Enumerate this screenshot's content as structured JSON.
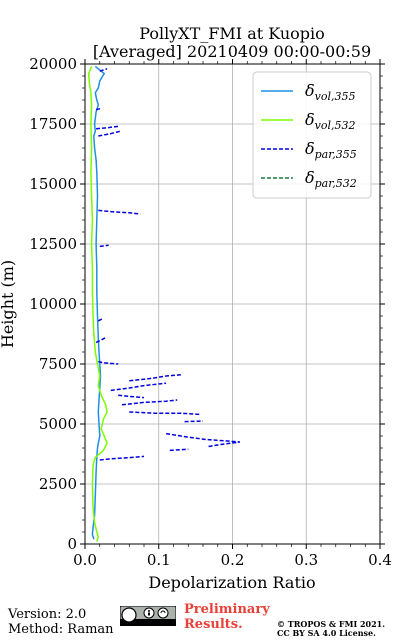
{
  "chart_data": {
    "type": "line",
    "title": [
      "PollyXT_FMI at Kuopio",
      "[Averaged] 20210409 00:00-00:59"
    ],
    "xlabel": "Depolarization Ratio",
    "ylabel": "Height (m)",
    "xlim": [
      0.0,
      0.4
    ],
    "ylim": [
      0,
      20000
    ],
    "xticks": [
      0.0,
      0.1,
      0.2,
      0.3,
      0.4
    ],
    "xtick_labels": [
      "0.0",
      "0.1",
      "0.2",
      "0.3",
      "0.4"
    ],
    "yticks": [
      0,
      2500,
      5000,
      7500,
      10000,
      12500,
      15000,
      17500,
      20000
    ],
    "ytick_labels": [
      "0",
      "2500",
      "5000",
      "7500",
      "10000",
      "12500",
      "15000",
      "17500",
      "20000"
    ],
    "grid": true,
    "legend_position": "top-right",
    "series": [
      {
        "name": "δvol,355",
        "legend_base": "δ",
        "legend_sub": "vol,355",
        "color": "#1f8fe6",
        "style": "solid",
        "points": [
          [
            0.012,
            200
          ],
          [
            0.01,
            400
          ],
          [
            0.011,
            700
          ],
          [
            0.013,
            1200
          ],
          [
            0.014,
            2000
          ],
          [
            0.015,
            3000
          ],
          [
            0.016,
            3600
          ],
          [
            0.017,
            4000
          ],
          [
            0.018,
            4200
          ],
          [
            0.02,
            4500
          ],
          [
            0.019,
            5000
          ],
          [
            0.018,
            5500
          ],
          [
            0.019,
            6000
          ],
          [
            0.02,
            6500
          ],
          [
            0.021,
            7000
          ],
          [
            0.02,
            7500
          ],
          [
            0.019,
            8000
          ],
          [
            0.018,
            8600
          ],
          [
            0.017,
            9500
          ],
          [
            0.016,
            10500
          ],
          [
            0.016,
            11500
          ],
          [
            0.015,
            12500
          ],
          [
            0.016,
            13500
          ],
          [
            0.017,
            14500
          ],
          [
            0.016,
            15500
          ],
          [
            0.015,
            16000
          ],
          [
            0.013,
            16500
          ],
          [
            0.012,
            17000
          ],
          [
            0.014,
            17200
          ],
          [
            0.013,
            17500
          ],
          [
            0.015,
            18000
          ],
          [
            0.018,
            18300
          ],
          [
            0.016,
            18500
          ],
          [
            0.014,
            18800
          ],
          [
            0.018,
            19000
          ],
          [
            0.02,
            19300
          ],
          [
            0.026,
            19600
          ],
          [
            0.014,
            19900
          ]
        ]
      },
      {
        "name": "δvol,532",
        "legend_base": "δ",
        "legend_sub": "vol,532",
        "color": "#7cfc00",
        "style": "solid",
        "points": [
          [
            0.016,
            100
          ],
          [
            0.018,
            300
          ],
          [
            0.016,
            500
          ],
          [
            0.013,
            900
          ],
          [
            0.011,
            1500
          ],
          [
            0.01,
            2500
          ],
          [
            0.011,
            3300
          ],
          [
            0.014,
            3600
          ],
          [
            0.025,
            3900
          ],
          [
            0.03,
            4200
          ],
          [
            0.026,
            4500
          ],
          [
            0.022,
            4800
          ],
          [
            0.025,
            5200
          ],
          [
            0.03,
            5500
          ],
          [
            0.028,
            5800
          ],
          [
            0.022,
            6200
          ],
          [
            0.018,
            6600
          ],
          [
            0.02,
            7000
          ],
          [
            0.017,
            7500
          ],
          [
            0.014,
            8000
          ],
          [
            0.012,
            8800
          ],
          [
            0.011,
            9500
          ],
          [
            0.01,
            10500
          ],
          [
            0.01,
            11500
          ],
          [
            0.009,
            12500
          ],
          [
            0.01,
            13500
          ],
          [
            0.009,
            14500
          ],
          [
            0.008,
            15500
          ],
          [
            0.009,
            16500
          ],
          [
            0.008,
            17500
          ],
          [
            0.009,
            18300
          ],
          [
            0.008,
            18800
          ],
          [
            0.006,
            19200
          ],
          [
            0.005,
            19600
          ],
          [
            0.009,
            19900
          ]
        ]
      },
      {
        "name": "δpar,355",
        "legend_base": "δ",
        "legend_sub": "par,355",
        "color": "#0000e0",
        "style": "dashed",
        "segments": [
          [
            [
              0.02,
              3500
            ],
            [
              0.035,
              3550
            ],
            [
              0.06,
              3600
            ],
            [
              0.08,
              3650
            ]
          ],
          [
            [
              0.115,
              3900
            ],
            [
              0.14,
              3950
            ]
          ],
          [
            [
              0.11,
              4600
            ],
            [
              0.14,
              4450
            ],
            [
              0.165,
              4350
            ],
            [
              0.19,
              4300
            ],
            [
              0.21,
              4250
            ],
            [
              0.185,
              4150
            ],
            [
              0.165,
              4050
            ]
          ],
          [
            [
              0.135,
              5100
            ],
            [
              0.16,
              5120
            ]
          ],
          [
            [
              0.06,
              5500
            ],
            [
              0.095,
              5450
            ],
            [
              0.13,
              5450
            ],
            [
              0.155,
              5400
            ]
          ],
          [
            [
              0.05,
              5800
            ],
            [
              0.08,
              5900
            ],
            [
              0.11,
              5950
            ],
            [
              0.125,
              6000
            ]
          ],
          [
            [
              0.045,
              6200
            ],
            [
              0.06,
              6150
            ],
            [
              0.08,
              6100
            ]
          ],
          [
            [
              0.035,
              6400
            ],
            [
              0.06,
              6500
            ],
            [
              0.08,
              6600
            ],
            [
              0.11,
              6700
            ]
          ],
          [
            [
              0.06,
              6800
            ],
            [
              0.09,
              6900
            ],
            [
              0.11,
              7000
            ],
            [
              0.13,
              7050
            ]
          ],
          [
            [
              0.018,
              7600
            ],
            [
              0.025,
              7550
            ],
            [
              0.045,
              7500
            ]
          ],
          [
            [
              0.015,
              8400
            ],
            [
              0.022,
              8500
            ],
            [
              0.028,
              8600
            ]
          ],
          [
            [
              0.018,
              9300
            ],
            [
              0.025,
              9400
            ]
          ],
          [
            [
              0.02,
              12400
            ],
            [
              0.032,
              12450
            ]
          ],
          [
            [
              0.018,
              13900
            ],
            [
              0.035,
              13850
            ],
            [
              0.06,
              13800
            ],
            [
              0.075,
              13750
            ]
          ],
          [
            [
              0.018,
              17000
            ],
            [
              0.035,
              17100
            ],
            [
              0.048,
              17200
            ]
          ],
          [
            [
              0.015,
              17300
            ],
            [
              0.032,
              17350
            ],
            [
              0.045,
              17400
            ]
          ],
          [
            [
              0.015,
              18100
            ],
            [
              0.022,
              18150
            ]
          ],
          [
            [
              0.02,
              19700
            ],
            [
              0.03,
              19800
            ]
          ]
        ]
      },
      {
        "name": "δpar,532",
        "legend_base": "δ",
        "legend_sub": "par,532",
        "color": "#1a7f3a",
        "style": "dashed",
        "segments": []
      }
    ]
  },
  "footer": {
    "version": "Version: 2.0",
    "method": "Method: Raman",
    "preliminary_line1": "Preliminary",
    "preliminary_line2": "Results.",
    "copyright_line1": "© TROPOS & FMI 2021.",
    "copyright_line2": "CC BY SA 4.0 License."
  }
}
